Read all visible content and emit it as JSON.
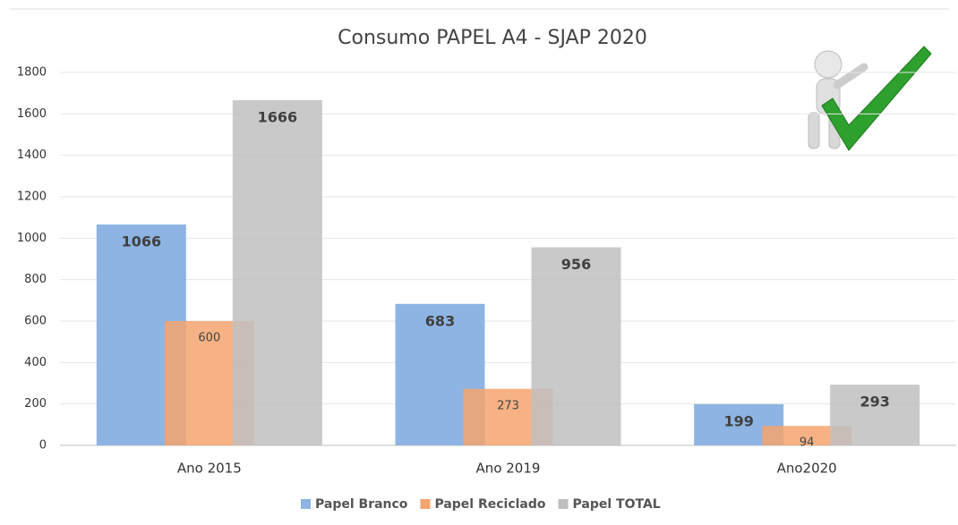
{
  "chart_data": {
    "type": "bar",
    "title": "Consumo PAPEL A4 - SJAP 2020",
    "categories": [
      "Ano 2015",
      "Ano 2019",
      "Ano2020"
    ],
    "series": [
      {
        "name": "Papel Branco",
        "color": "#8db4e2",
        "values": [
          1066,
          683,
          199
        ]
      },
      {
        "name": "Papel Reciclado",
        "color": "#f4a46f",
        "values": [
          600,
          273,
          94
        ]
      },
      {
        "name": "Papel TOTAL",
        "color": "#bfbfbf",
        "values": [
          1666,
          956,
          293
        ]
      }
    ],
    "ylim": [
      0,
      1800
    ],
    "yticks": [
      0,
      200,
      400,
      600,
      800,
      1000,
      1200,
      1400,
      1600,
      1800
    ],
    "grid": true,
    "legend": "bottom"
  }
}
